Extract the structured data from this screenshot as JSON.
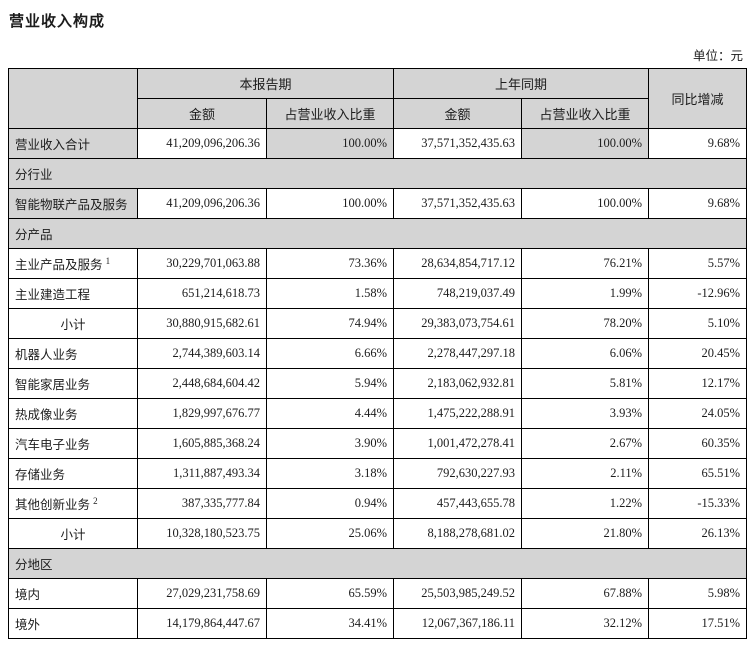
{
  "page": {
    "title": "营业收入构成",
    "unit_label": "单位：元"
  },
  "table": {
    "headers": {
      "current_period": "本报告期",
      "prior_period": "上年同期",
      "yoy": "同比增减",
      "amount": "金额",
      "share": "占营业收入比重"
    },
    "rows": [
      {
        "type": "data",
        "label": "营业收入合计",
        "sup": "",
        "align": "left",
        "shade_label": true,
        "shade_share": true,
        "cur_amount": "41,209,096,206.36",
        "cur_share": "100.00%",
        "prior_amount": "37,571,352,435.63",
        "prior_share": "100.00%",
        "yoy": "9.68%"
      },
      {
        "type": "section",
        "label": "分行业"
      },
      {
        "type": "data",
        "label": "智能物联产品及服务",
        "sup": "",
        "align": "left",
        "shade_label": true,
        "shade_share": false,
        "cur_amount": "41,209,096,206.36",
        "cur_share": "100.00%",
        "prior_amount": "37,571,352,435.63",
        "prior_share": "100.00%",
        "yoy": "9.68%"
      },
      {
        "type": "section",
        "label": "分产品"
      },
      {
        "type": "data",
        "label": "主业产品及服务",
        "sup": "1",
        "align": "left",
        "shade_label": false,
        "shade_share": false,
        "cur_amount": "30,229,701,063.88",
        "cur_share": "73.36%",
        "prior_amount": "28,634,854,717.12",
        "prior_share": "76.21%",
        "yoy": "5.57%"
      },
      {
        "type": "data",
        "label": "主业建造工程",
        "sup": "",
        "align": "left",
        "shade_label": false,
        "shade_share": false,
        "cur_amount": "651,214,618.73",
        "cur_share": "1.58%",
        "prior_amount": "748,219,037.49",
        "prior_share": "1.99%",
        "yoy": "-12.96%"
      },
      {
        "type": "data",
        "label": "小计",
        "sup": "",
        "align": "center",
        "shade_label": false,
        "shade_share": false,
        "cur_amount": "30,880,915,682.61",
        "cur_share": "74.94%",
        "prior_amount": "29,383,073,754.61",
        "prior_share": "78.20%",
        "yoy": "5.10%"
      },
      {
        "type": "data",
        "label": "机器人业务",
        "sup": "",
        "align": "left",
        "shade_label": false,
        "shade_share": false,
        "cur_amount": "2,744,389,603.14",
        "cur_share": "6.66%",
        "prior_amount": "2,278,447,297.18",
        "prior_share": "6.06%",
        "yoy": "20.45%"
      },
      {
        "type": "data",
        "label": "智能家居业务",
        "sup": "",
        "align": "left",
        "shade_label": false,
        "shade_share": false,
        "cur_amount": "2,448,684,604.42",
        "cur_share": "5.94%",
        "prior_amount": "2,183,062,932.81",
        "prior_share": "5.81%",
        "yoy": "12.17%"
      },
      {
        "type": "data",
        "label": "热成像业务",
        "sup": "",
        "align": "left",
        "shade_label": false,
        "shade_share": false,
        "cur_amount": "1,829,997,676.77",
        "cur_share": "4.44%",
        "prior_amount": "1,475,222,288.91",
        "prior_share": "3.93%",
        "yoy": "24.05%"
      },
      {
        "type": "data",
        "label": "汽车电子业务",
        "sup": "",
        "align": "left",
        "shade_label": false,
        "shade_share": false,
        "cur_amount": "1,605,885,368.24",
        "cur_share": "3.90%",
        "prior_amount": "1,001,472,278.41",
        "prior_share": "2.67%",
        "yoy": "60.35%"
      },
      {
        "type": "data",
        "label": "存储业务",
        "sup": "",
        "align": "left",
        "shade_label": false,
        "shade_share": false,
        "cur_amount": "1,311,887,493.34",
        "cur_share": "3.18%",
        "prior_amount": "792,630,227.93",
        "prior_share": "2.11%",
        "yoy": "65.51%"
      },
      {
        "type": "data",
        "label": "其他创新业务",
        "sup": "2",
        "align": "left",
        "shade_label": false,
        "shade_share": false,
        "cur_amount": "387,335,777.84",
        "cur_share": "0.94%",
        "prior_amount": "457,443,655.78",
        "prior_share": "1.22%",
        "yoy": "-15.33%"
      },
      {
        "type": "data",
        "label": "小计",
        "sup": "",
        "align": "center",
        "shade_label": false,
        "shade_share": false,
        "cur_amount": "10,328,180,523.75",
        "cur_share": "25.06%",
        "prior_amount": "8,188,278,681.02",
        "prior_share": "21.80%",
        "yoy": "26.13%"
      },
      {
        "type": "section",
        "label": "分地区"
      },
      {
        "type": "data",
        "label": "境内",
        "sup": "",
        "align": "left",
        "shade_label": false,
        "shade_share": false,
        "cur_amount": "27,029,231,758.69",
        "cur_share": "65.59%",
        "prior_amount": "25,503,985,249.52",
        "prior_share": "67.88%",
        "yoy": "5.98%"
      },
      {
        "type": "data",
        "label": "境外",
        "sup": "",
        "align": "left",
        "shade_label": false,
        "shade_share": false,
        "cur_amount": "14,179,864,447.67",
        "cur_share": "34.41%",
        "prior_amount": "12,067,367,186.11",
        "prior_share": "32.12%",
        "yoy": "17.51%"
      }
    ]
  }
}
